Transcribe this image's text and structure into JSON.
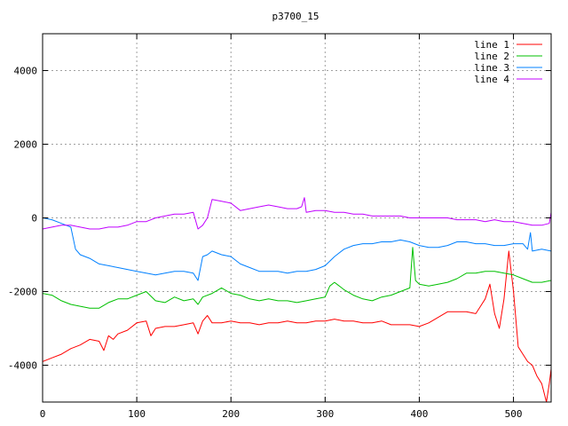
{
  "chart_data": {
    "type": "line",
    "title": "p3700_15",
    "xlabel": "",
    "ylabel": "",
    "xlim": [
      0,
      540
    ],
    "ylim": [
      -5000,
      5000
    ],
    "x_ticks": [
      0,
      100,
      200,
      300,
      400,
      500
    ],
    "y_ticks": [
      -4000,
      -2000,
      0,
      2000,
      4000
    ],
    "grid": true,
    "legend_position": "top-right",
    "series": [
      {
        "name": "line 1",
        "color": "#ff0000",
        "x": [
          0,
          10,
          20,
          30,
          40,
          50,
          60,
          65,
          70,
          75,
          80,
          90,
          100,
          110,
          115,
          120,
          130,
          140,
          150,
          160,
          165,
          170,
          175,
          180,
          190,
          200,
          210,
          220,
          230,
          240,
          250,
          260,
          270,
          280,
          290,
          300,
          310,
          320,
          330,
          340,
          350,
          360,
          370,
          380,
          390,
          400,
          410,
          420,
          430,
          440,
          450,
          460,
          465,
          470,
          475,
          480,
          485,
          490,
          495,
          500,
          505,
          510,
          515,
          520,
          525,
          530,
          535,
          538,
          540
        ],
        "y": [
          -3900,
          -3800,
          -3700,
          -3550,
          -3450,
          -3300,
          -3350,
          -3600,
          -3200,
          -3300,
          -3150,
          -3050,
          -2850,
          -2800,
          -3200,
          -3000,
          -2950,
          -2950,
          -2900,
          -2850,
          -3150,
          -2800,
          -2650,
          -2850,
          -2850,
          -2800,
          -2850,
          -2850,
          -2900,
          -2850,
          -2850,
          -2800,
          -2850,
          -2850,
          -2800,
          -2800,
          -2750,
          -2800,
          -2800,
          -2850,
          -2850,
          -2800,
          -2900,
          -2900,
          -2900,
          -2950,
          -2850,
          -2700,
          -2550,
          -2550,
          -2550,
          -2600,
          -2400,
          -2200,
          -1800,
          -2600,
          -3000,
          -2200,
          -900,
          -2000,
          -3500,
          -3700,
          -3900,
          -4000,
          -4300,
          -4500,
          -5000,
          -4500,
          -4100
        ]
      },
      {
        "name": "line 2",
        "color": "#00c000",
        "x": [
          0,
          10,
          20,
          30,
          40,
          50,
          60,
          70,
          80,
          90,
          100,
          110,
          120,
          130,
          140,
          150,
          160,
          165,
          170,
          180,
          190,
          200,
          210,
          220,
          230,
          240,
          250,
          260,
          270,
          280,
          290,
          300,
          305,
          310,
          320,
          330,
          340,
          350,
          360,
          370,
          380,
          390,
          393,
          396,
          400,
          410,
          420,
          430,
          440,
          450,
          460,
          470,
          480,
          490,
          500,
          510,
          520,
          530,
          540
        ],
        "y": [
          -2050,
          -2100,
          -2250,
          -2350,
          -2400,
          -2450,
          -2450,
          -2300,
          -2200,
          -2200,
          -2100,
          -2000,
          -2250,
          -2300,
          -2150,
          -2250,
          -2200,
          -2350,
          -2150,
          -2050,
          -1900,
          -2050,
          -2100,
          -2200,
          -2250,
          -2200,
          -2250,
          -2250,
          -2300,
          -2250,
          -2200,
          -2150,
          -1850,
          -1750,
          -1950,
          -2100,
          -2200,
          -2250,
          -2150,
          -2100,
          -2000,
          -1900,
          -800,
          -1700,
          -1800,
          -1850,
          -1800,
          -1750,
          -1650,
          -1500,
          -1500,
          -1450,
          -1450,
          -1500,
          -1550,
          -1650,
          -1750,
          -1750,
          -1700
        ]
      },
      {
        "name": "line 3",
        "color": "#0080ff",
        "x": [
          0,
          10,
          20,
          30,
          35,
          40,
          50,
          60,
          70,
          80,
          90,
          100,
          110,
          120,
          130,
          140,
          150,
          160,
          165,
          170,
          175,
          180,
          190,
          200,
          210,
          220,
          230,
          240,
          250,
          260,
          270,
          280,
          290,
          300,
          310,
          320,
          330,
          340,
          350,
          360,
          370,
          380,
          390,
          400,
          410,
          420,
          430,
          440,
          450,
          460,
          470,
          480,
          490,
          500,
          510,
          515,
          518,
          520,
          530,
          540
        ],
        "y": [
          0,
          -50,
          -150,
          -250,
          -850,
          -1000,
          -1100,
          -1250,
          -1300,
          -1350,
          -1400,
          -1450,
          -1500,
          -1550,
          -1500,
          -1450,
          -1450,
          -1500,
          -1700,
          -1050,
          -1000,
          -900,
          -1000,
          -1050,
          -1250,
          -1350,
          -1450,
          -1450,
          -1450,
          -1500,
          -1450,
          -1450,
          -1400,
          -1300,
          -1050,
          -850,
          -750,
          -700,
          -700,
          -650,
          -650,
          -600,
          -650,
          -750,
          -800,
          -800,
          -750,
          -650,
          -650,
          -700,
          -700,
          -750,
          -750,
          -700,
          -700,
          -850,
          -400,
          -900,
          -850,
          -900
        ]
      },
      {
        "name": "line 4",
        "color": "#c000ff",
        "x": [
          0,
          10,
          20,
          30,
          40,
          50,
          60,
          70,
          80,
          90,
          100,
          110,
          120,
          130,
          140,
          150,
          160,
          165,
          170,
          175,
          180,
          190,
          200,
          210,
          220,
          230,
          240,
          250,
          260,
          270,
          275,
          278,
          280,
          290,
          300,
          310,
          320,
          330,
          340,
          350,
          360,
          370,
          380,
          390,
          400,
          410,
          420,
          430,
          440,
          450,
          460,
          470,
          480,
          490,
          500,
          510,
          520,
          530,
          538,
          540
        ],
        "y": [
          -300,
          -250,
          -200,
          -200,
          -250,
          -300,
          -300,
          -250,
          -250,
          -200,
          -100,
          -100,
          0,
          50,
          100,
          100,
          150,
          -300,
          -200,
          0,
          500,
          450,
          400,
          200,
          250,
          300,
          350,
          300,
          250,
          250,
          300,
          550,
          150,
          200,
          200,
          150,
          150,
          100,
          100,
          50,
          50,
          50,
          50,
          0,
          0,
          0,
          0,
          0,
          -50,
          -50,
          -50,
          -100,
          -50,
          -100,
          -100,
          -150,
          -200,
          -200,
          -150,
          150
        ]
      }
    ]
  }
}
